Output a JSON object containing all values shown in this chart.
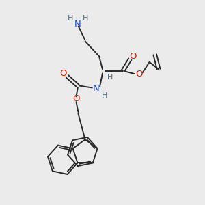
{
  "bg_color": "#ebebeb",
  "bond_color": "#2a2a2a",
  "N_color": "#1a4fcc",
  "O_color": "#cc2200",
  "H_color": "#4a7080",
  "line_width": 1.4,
  "figsize": [
    3.0,
    3.0
  ],
  "dpi": 100,
  "xlim": [
    0,
    10
  ],
  "ylim": [
    0,
    10
  ]
}
